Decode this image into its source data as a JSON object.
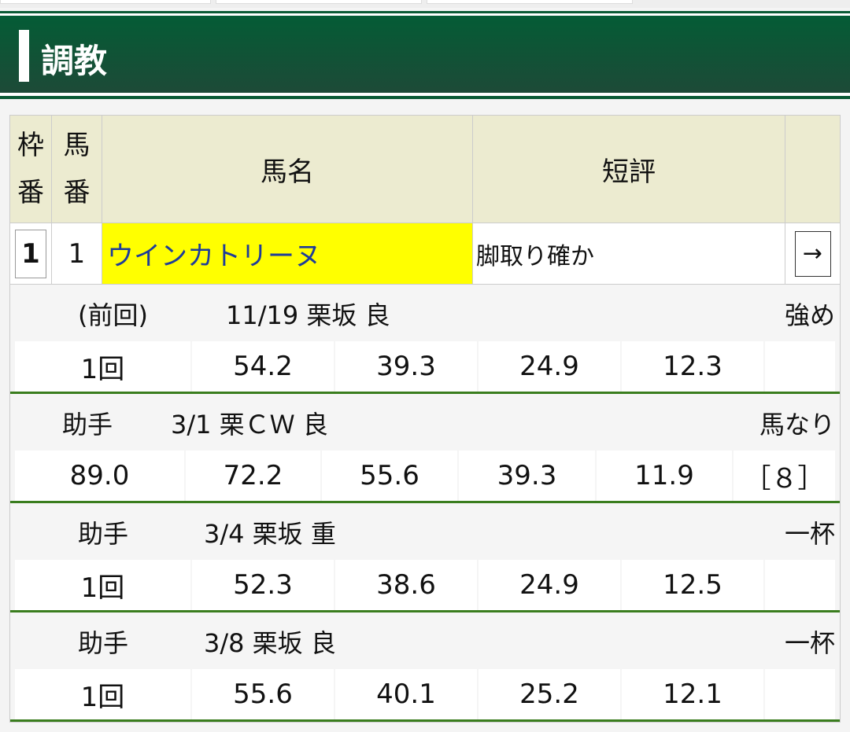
{
  "section_title": "調教",
  "table": {
    "headers": {
      "waku": [
        "枠",
        "番"
      ],
      "umaban": [
        "馬",
        "番"
      ],
      "name": "馬名",
      "comment": "短評"
    },
    "horse": {
      "waku": "1",
      "umaban": "1",
      "name": "ウインカトリーヌ",
      "comment": "脚取り確か",
      "link_label": "→"
    },
    "name_highlight_color": "#ffff00",
    "accent_color": "#045c36"
  },
  "trainings": [
    {
      "rider": "(前回)",
      "date_course": "11/19 栗坂 良",
      "intensity": "強め",
      "values": [
        "1回",
        "54.2",
        "39.3",
        "24.9",
        "12.3",
        ""
      ]
    },
    {
      "rider": "助手",
      "date_course": "3/1 栗ＣＷ 良",
      "intensity": "馬なり",
      "values": [
        "89.0",
        "72.2",
        "55.6",
        "39.3",
        "11.9",
        "［８］"
      ]
    },
    {
      "rider": "助手",
      "date_course": "3/4 栗坂 重",
      "intensity": "一杯",
      "values": [
        "1回",
        "52.3",
        "38.6",
        "24.9",
        "12.5",
        ""
      ]
    },
    {
      "rider": "助手",
      "date_course": "3/8 栗坂 良",
      "intensity": "一杯",
      "values": [
        "1回",
        "55.6",
        "40.1",
        "25.2",
        "12.1",
        ""
      ]
    }
  ]
}
